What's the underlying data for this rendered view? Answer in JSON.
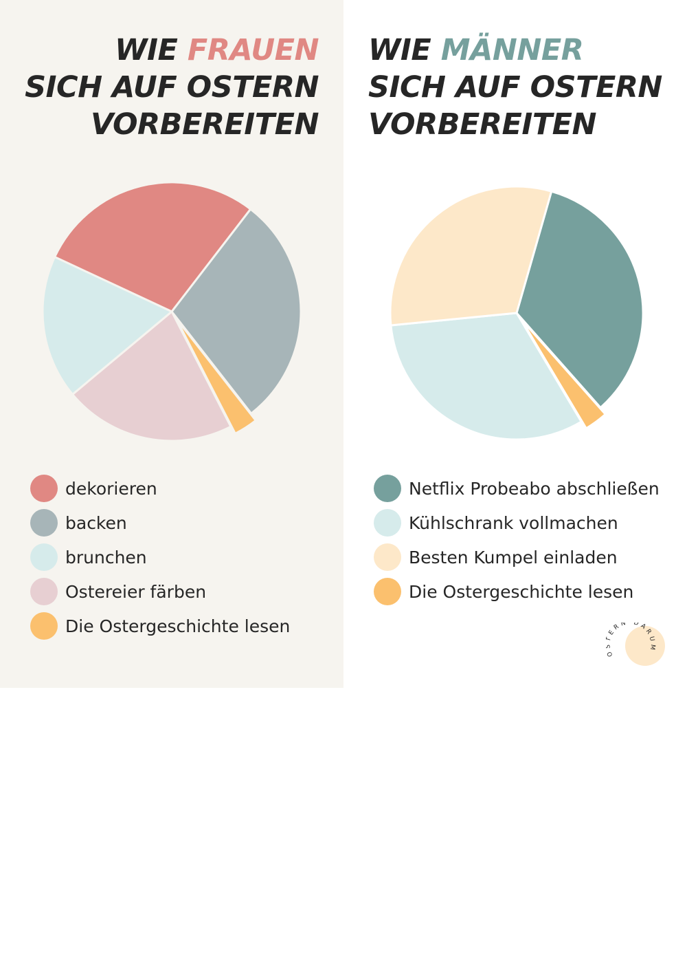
{
  "left": {
    "title": {
      "line1_prefix": "WIE ",
      "line1_highlight": "FRAUEN",
      "line2": "SICH AUF OSTERN",
      "line3": "VORBEREITEN",
      "highlight_color": "#e08883"
    }
  },
  "right": {
    "title": {
      "line1_prefix": "WIE ",
      "line1_highlight": "MÄNNER",
      "line2": "SICH AUF OSTERN",
      "line3": "VORBEREITEN",
      "highlight_color": "#76a09d"
    }
  },
  "logo": {
    "text": "OSTERN DARUM",
    "color": "#fde8c9"
  },
  "chart_data": [
    {
      "type": "pie",
      "legend_placement": "bottom",
      "slices": [
        {
          "label": "dekorieren",
          "value": 28.5,
          "color": "#e08883"
        },
        {
          "label": "backen",
          "value": 29,
          "color": "#a7b5b8"
        },
        {
          "label": "Die Ostergeschichte lesen",
          "value": 3,
          "color": "#fbc06e",
          "exploded": true
        },
        {
          "label": "Ostereier färben",
          "value": 21.5,
          "color": "#e7cfd2"
        },
        {
          "label": "brunchen",
          "value": 18,
          "color": "#d6ebeb"
        }
      ],
      "legend_order": [
        "dekorieren",
        "backen",
        "brunchen",
        "Ostereier färben",
        "Die Ostergeschichte lesen"
      ]
    },
    {
      "type": "pie",
      "legend_placement": "bottom",
      "slices": [
        {
          "label": "Netflix Probeabo abschließen",
          "value": 34,
          "color": "#76a09d"
        },
        {
          "label": "Die Ostergeschichte lesen",
          "value": 3,
          "color": "#fbc06e",
          "exploded": true
        },
        {
          "label": "Kühlschrank vollmachen",
          "value": 32,
          "color": "#d6ebeb"
        },
        {
          "label": "Besten Kumpel einladen",
          "value": 31,
          "color": "#fde8c9"
        }
      ],
      "legend_order": [
        "Netflix Probeabo abschließen",
        "Kühlschrank vollmachen",
        "Besten Kumpel einladen",
        "Die Ostergeschichte lesen"
      ]
    }
  ]
}
